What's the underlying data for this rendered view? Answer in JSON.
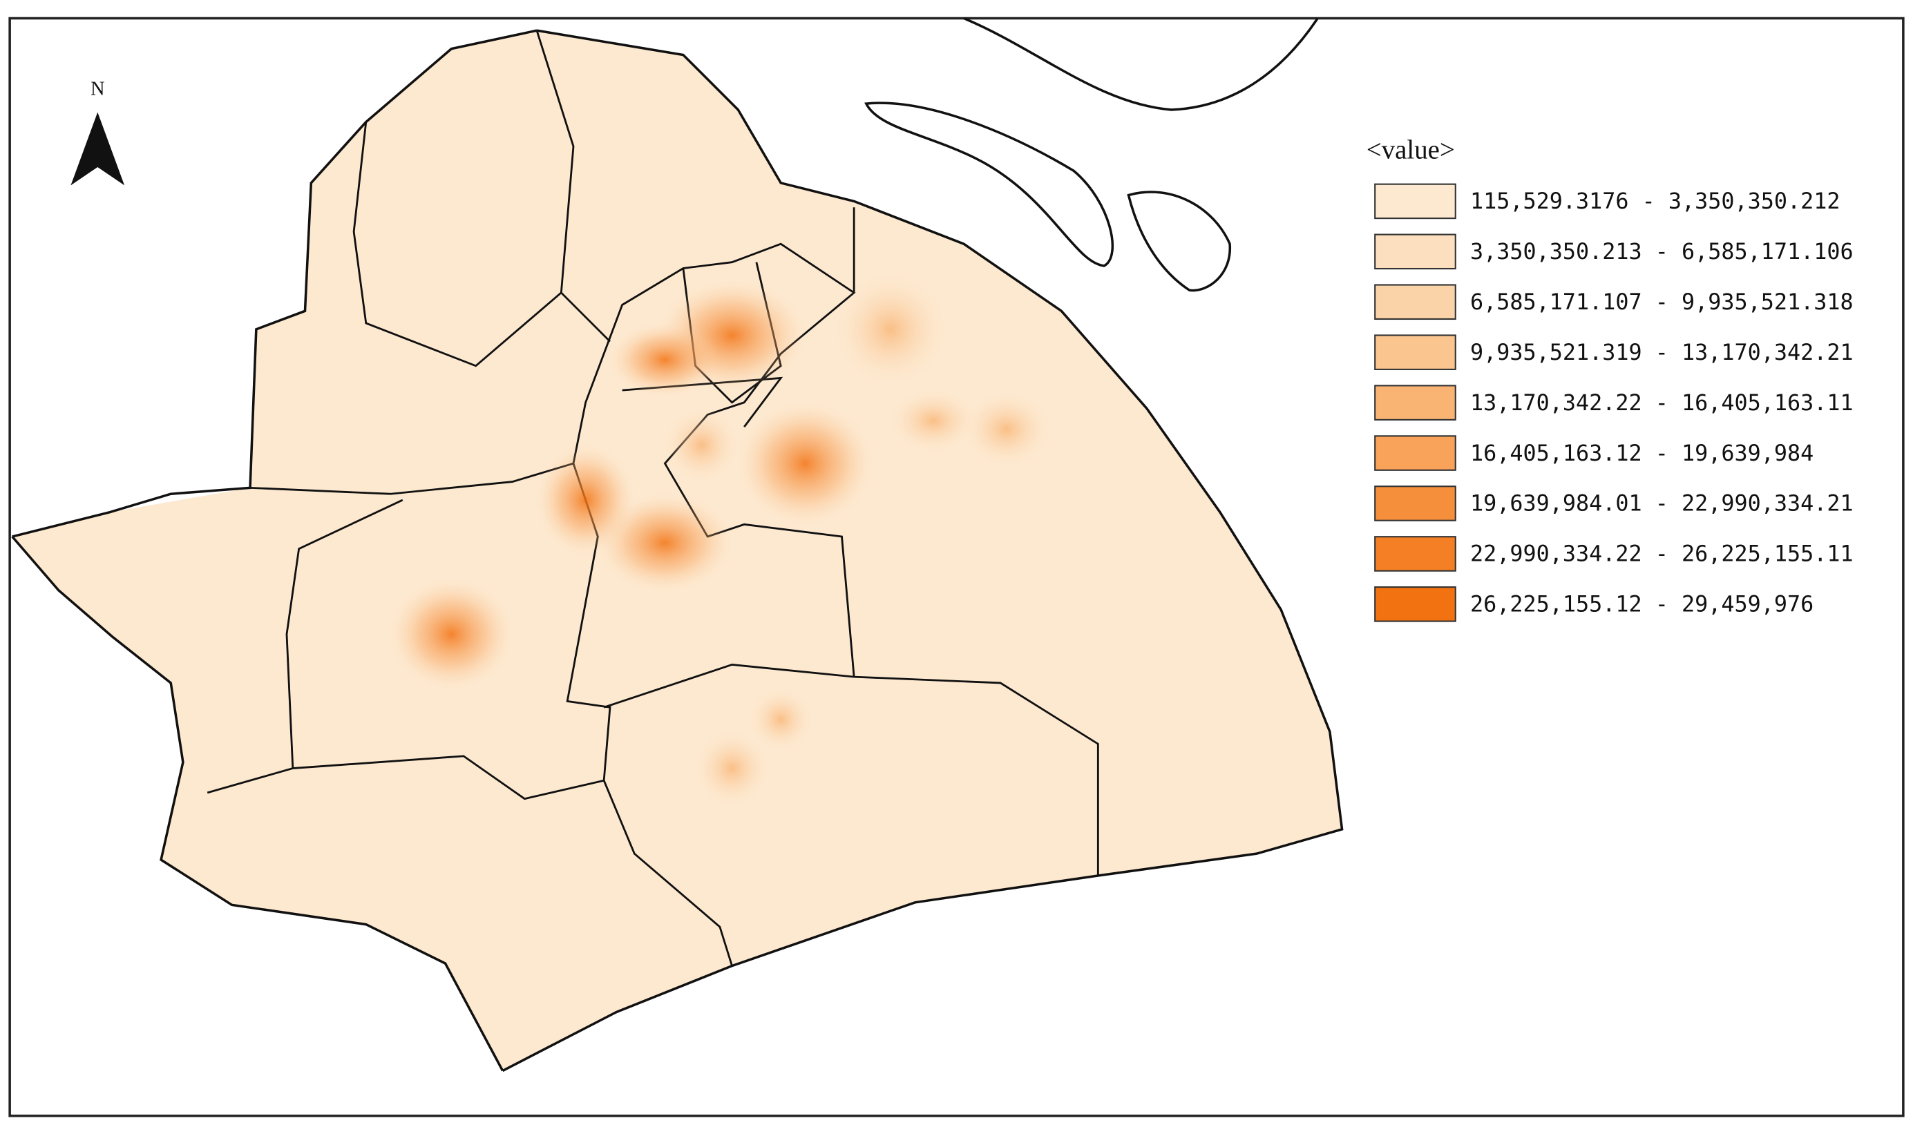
{
  "north_arrow": {
    "label": "N"
  },
  "legend": {
    "title": "<value>",
    "items": [
      {
        "label": "115,529.3176 - 3,350,350.212",
        "color": "#fde9d0"
      },
      {
        "label": "3,350,350.213 - 6,585,171.106",
        "color": "#fcdfbe"
      },
      {
        "label": "6,585,171.107 - 9,935,521.318",
        "color": "#fbd3a8"
      },
      {
        "label": "9,935,521.319 - 13,170,342.21",
        "color": "#fac58f"
      },
      {
        "label": "13,170,342.22 - 16,405,163.11",
        "color": "#f9b474"
      },
      {
        "label": "16,405,163.12 - 19,639,984",
        "color": "#f8a25a"
      },
      {
        "label": "19,639,984.01 - 22,990,334.21",
        "color": "#f68f3c"
      },
      {
        "label": "22,990,334.22 - 26,225,155.11",
        "color": "#f57f24"
      },
      {
        "label": "26,225,155.12 - 29,459,976",
        "color": "#f27212"
      }
    ]
  }
}
